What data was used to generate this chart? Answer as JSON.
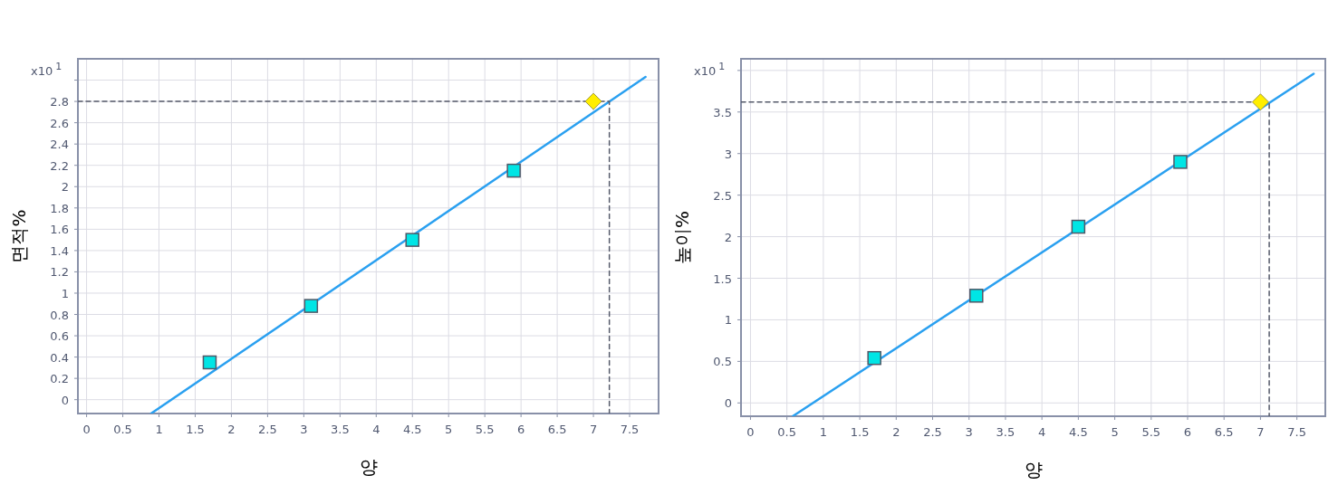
{
  "chart_data": [
    {
      "type": "scatter",
      "xlabel": "양",
      "ylabel": "면적%",
      "annotations": [
        "x10$^{1}$"
      ],
      "grid": true,
      "xlim": [
        -0.12,
        7.9
      ],
      "ylim": [
        -0.13,
        3.2
      ],
      "xticks": [
        0,
        0.5,
        1,
        1.5,
        2,
        2.5,
        3,
        3.5,
        4,
        4.5,
        5,
        5.5,
        6,
        6.5,
        7,
        7.5
      ],
      "yticks": [
        0,
        0.2,
        0.4,
        0.6,
        0.8,
        1,
        1.2,
        1.4,
        1.6,
        1.8,
        2,
        2.2,
        2.4,
        2.6,
        2.8,
        {
          "value": 3,
          "label": null
        }
      ],
      "series": [
        {
          "type": "line",
          "color": "#2aa0f0",
          "line_style": "solid",
          "x": [
            0.89,
            7.72
          ],
          "values": [
            -0.13,
            3.03
          ]
        },
        {
          "type": "line",
          "color": "#555a6a",
          "line_style": "dashed",
          "x": [
            -0.12,
            7.22,
            7.22
          ],
          "values": [
            2.8,
            2.8,
            -0.13
          ]
        },
        {
          "type": "scatter",
          "color": "#00e5e5",
          "marker": "square",
          "x": [
            1.7,
            3.1,
            4.5,
            5.9
          ],
          "values": [
            0.35,
            0.88,
            1.5,
            2.15
          ]
        },
        {
          "type": "scatter",
          "color": "#ffee00",
          "marker": "diamond",
          "x": [
            7.0
          ],
          "values": [
            2.8
          ]
        }
      ]
    },
    {
      "type": "scatter",
      "xlabel": "양",
      "ylabel": "높이%",
      "annotations": [
        "x10$^{1}$"
      ],
      "grid": true,
      "xlim": [
        -0.13,
        7.89
      ],
      "ylim": [
        -0.16,
        4.14
      ],
      "xticks": [
        0,
        0.5,
        1,
        1.5,
        2,
        2.5,
        3,
        3.5,
        4,
        4.5,
        5,
        5.5,
        6,
        6.5,
        7,
        7.5
      ],
      "yticks": [
        0,
        0.5,
        1,
        1.5,
        2,
        2.5,
        3,
        3.5,
        {
          "value": 4,
          "label": null
        }
      ],
      "series": [
        {
          "type": "line",
          "color": "#2aa0f0",
          "line_style": "solid",
          "x": [
            0.58,
            7.73
          ],
          "values": [
            -0.16,
            3.96
          ]
        },
        {
          "type": "line",
          "color": "#555a6a",
          "line_style": "dashed",
          "x": [
            -0.13,
            7.12,
            7.12
          ],
          "values": [
            3.62,
            3.62,
            -0.16
          ]
        },
        {
          "type": "scatter",
          "color": "#00e5e5",
          "marker": "square",
          "x": [
            1.7,
            3.1,
            4.5,
            5.9
          ],
          "values": [
            0.54,
            1.29,
            2.12,
            2.9
          ]
        },
        {
          "type": "scatter",
          "color": "#ffee00",
          "marker": "diamond",
          "x": [
            7.0
          ],
          "values": [
            3.62
          ]
        }
      ]
    }
  ]
}
